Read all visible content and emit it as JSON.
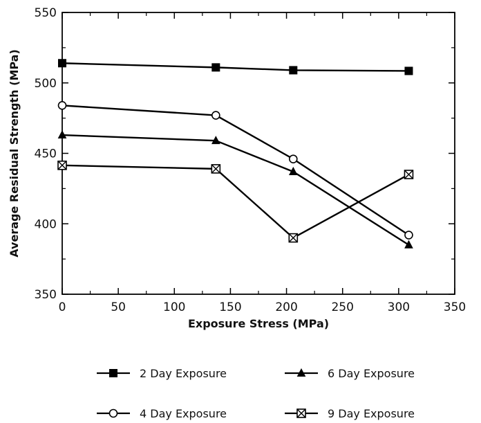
{
  "chart_data": {
    "type": "line",
    "title": "",
    "xlabel": "Exposure Stress (MPa)",
    "ylabel": "Average Residual Strength (MPa)",
    "xlim": [
      0,
      350
    ],
    "ylim": [
      350,
      550
    ],
    "xticks": [
      0,
      50,
      100,
      150,
      200,
      250,
      300,
      350
    ],
    "yticks": [
      350,
      400,
      450,
      500,
      550
    ],
    "xtick_labels": [
      "0",
      "50",
      "100",
      "150",
      "200",
      "250",
      "300",
      "350"
    ],
    "ytick_labels": [
      "350",
      "400",
      "450",
      "500",
      "550"
    ],
    "grid": false,
    "legend_position": "bottom",
    "series": [
      {
        "name": "2 Day Exposure",
        "marker": "filled-square",
        "color": "#000000",
        "x": [
          0,
          137,
          206,
          309
        ],
        "y": [
          514,
          511,
          509,
          508.5
        ]
      },
      {
        "name": "4 Day Exposure",
        "marker": "open-circle",
        "color": "#000000",
        "x": [
          0,
          137,
          206,
          309
        ],
        "y": [
          484,
          477,
          446,
          392
        ]
      },
      {
        "name": "6 Day Exposure",
        "marker": "filled-triangle",
        "color": "#000000",
        "x": [
          0,
          137,
          206,
          309
        ],
        "y": [
          463,
          459,
          437,
          385
        ]
      },
      {
        "name": "9 Day Exposure",
        "marker": "crossed-square",
        "color": "#000000",
        "x": [
          0,
          137,
          206,
          309
        ],
        "y": [
          441.5,
          439,
          390,
          435
        ]
      }
    ]
  }
}
